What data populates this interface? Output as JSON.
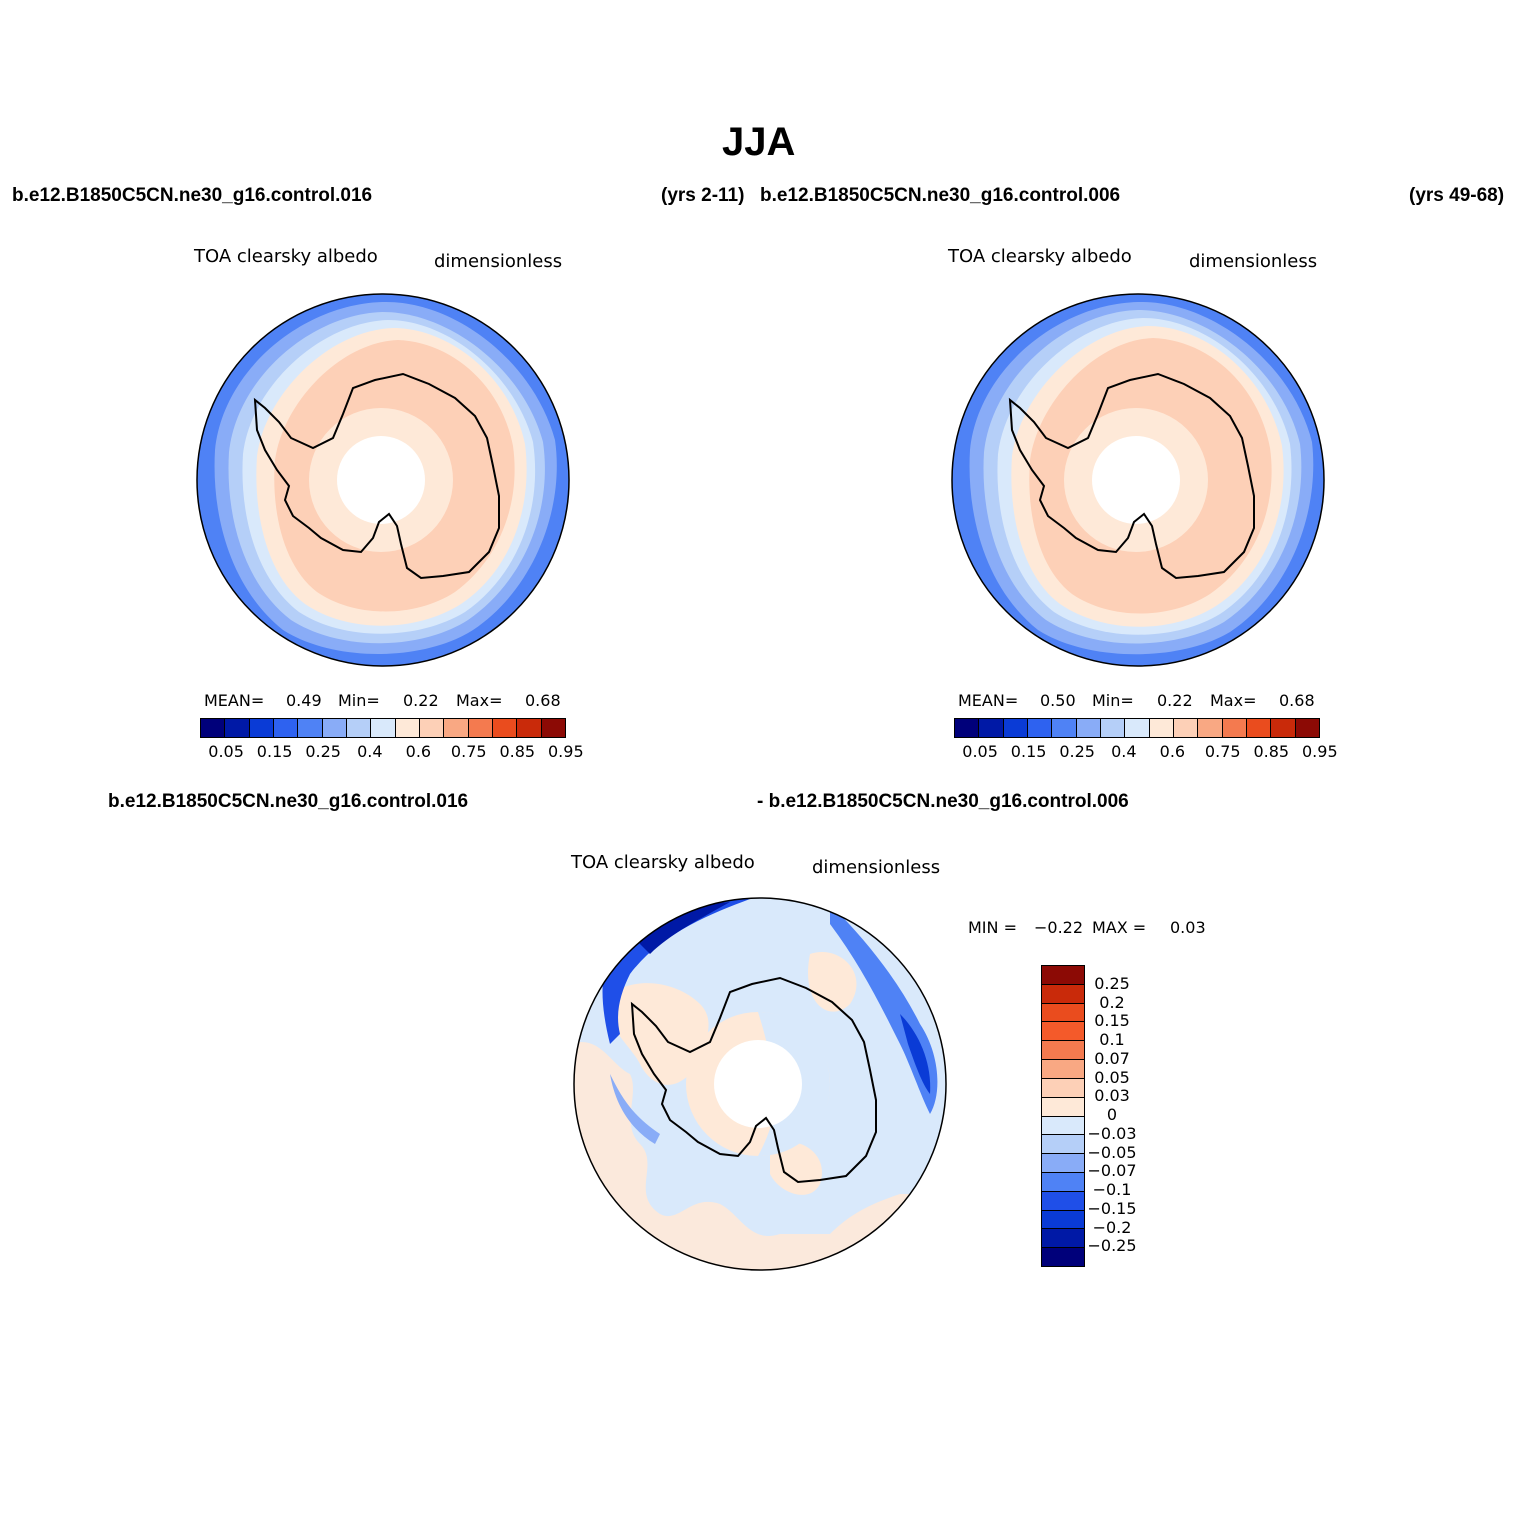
{
  "title": "JJA",
  "header": {
    "case1": "b.e12.B1850C5CN.ne30_g16.control.016",
    "years1": "(yrs 2-11)",
    "case2": "b.e12.B1850C5CN.ne30_g16.control.006",
    "years2": "(yrs 49-68)"
  },
  "diff_header": {
    "left": "b.e12.B1850C5CN.ne30_g16.control.016",
    "right": "- b.e12.B1850C5CN.ne30_g16.control.006"
  },
  "panel1": {
    "variable": "TOA clearsky albedo",
    "units": "dimensionless",
    "mean_label": "MEAN=",
    "mean": "0.49",
    "min_label": "Min=",
    "min": "0.22",
    "max_label": "Max=",
    "max": "0.68"
  },
  "panel2": {
    "variable": "TOA clearsky albedo",
    "units": "dimensionless",
    "mean_label": "MEAN=",
    "mean": "0.50",
    "min_label": "Min=",
    "min": "0.22",
    "max_label": "Max=",
    "max": "0.68"
  },
  "panel3": {
    "variable": "TOA clearsky albedo",
    "units": "dimensionless",
    "min_label": "MIN =",
    "min": "−0.22",
    "max_label": "MAX =",
    "max": "0.03"
  },
  "colorbar_abs": {
    "colors": [
      "#00007a",
      "#0019a6",
      "#0a3bd6",
      "#2e62f0",
      "#4f82f5",
      "#89acf7",
      "#b5cff8",
      "#d9e9fb",
      "#fee9d8",
      "#fdd0b7",
      "#f9a883",
      "#f47a4f",
      "#ea4c1e",
      "#c92a0a",
      "#8c0a05"
    ],
    "labels": [
      "0.05",
      "0.15",
      "0.25",
      "0.4",
      "0.6",
      "0.75",
      "0.85",
      "0.95"
    ]
  },
  "colorbar_diff": {
    "colors": [
      "#8c0a05",
      "#c92a0a",
      "#ea4c1e",
      "#f45a2a",
      "#f47a4f",
      "#f9a883",
      "#fdd0b7",
      "#fee9d8",
      "#d9e9fb",
      "#b5cff8",
      "#89acf7",
      "#4f82f5",
      "#1f4fe8",
      "#0a3bd6",
      "#0019a6",
      "#00007a"
    ],
    "labels": [
      "0.25",
      "0.2",
      "0.15",
      "0.1",
      "0.07",
      "0.05",
      "0.03",
      "0",
      "−0.03",
      "−0.05",
      "−0.07",
      "−0.1",
      "−0.15",
      "−0.2",
      "−0.25"
    ]
  }
}
